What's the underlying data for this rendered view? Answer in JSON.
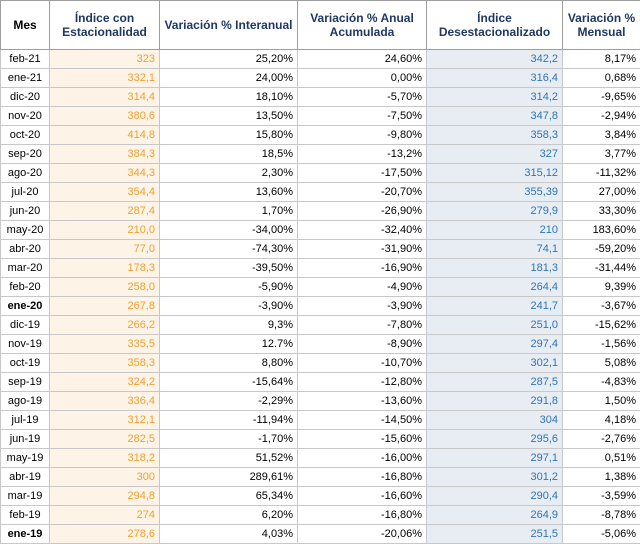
{
  "headers": [
    "Mes",
    "Índice con Estacionalidad",
    "Variación % Interanual",
    "Variación % Anual Acumulada",
    "Índice Desestacionalizado",
    "Variación % Mensual"
  ],
  "rows": [
    {
      "mes": "feb-21",
      "indice": "323",
      "interanual": "25,20%",
      "acumulada": "24,60%",
      "desest": "342,2",
      "mensual": "8,17%",
      "bold": false
    },
    {
      "mes": "ene-21",
      "indice": "332,1",
      "interanual": "24,00%",
      "acumulada": "0,00%",
      "desest": "316,4",
      "mensual": "0,68%",
      "bold": false
    },
    {
      "mes": "dic-20",
      "indice": "314,4",
      "interanual": "18,10%",
      "acumulada": "-5,70%",
      "desest": "314,2",
      "mensual": "-9,65%",
      "bold": false
    },
    {
      "mes": "nov-20",
      "indice": "380,6",
      "interanual": "13,50%",
      "acumulada": "-7,50%",
      "desest": "347,8",
      "mensual": "-2,94%",
      "bold": false
    },
    {
      "mes": "oct-20",
      "indice": "414,8",
      "interanual": "15,80%",
      "acumulada": "-9,80%",
      "desest": "358,3",
      "mensual": "3,84%",
      "bold": false
    },
    {
      "mes": "sep-20",
      "indice": "384,3",
      "interanual": "18,5%",
      "acumulada": "-13,2%",
      "desest": "327",
      "mensual": "3,77%",
      "bold": false
    },
    {
      "mes": "ago-20",
      "indice": "344,3",
      "interanual": "2,30%",
      "acumulada": "-17,50%",
      "desest": "315,12",
      "mensual": "-11,32%",
      "bold": false
    },
    {
      "mes": "jul-20",
      "indice": "354,4",
      "interanual": "13,60%",
      "acumulada": "-20,70%",
      "desest": "355,39",
      "mensual": "27,00%",
      "bold": false
    },
    {
      "mes": "jun-20",
      "indice": "287,4",
      "interanual": "1,70%",
      "acumulada": "-26,90%",
      "desest": "279,9",
      "mensual": "33,30%",
      "bold": false
    },
    {
      "mes": "may-20",
      "indice": "210,0",
      "interanual": "-34,00%",
      "acumulada": "-32,40%",
      "desest": "210",
      "mensual": "183,60%",
      "bold": false
    },
    {
      "mes": "abr-20",
      "indice": "77,0",
      "interanual": "-74,30%",
      "acumulada": "-31,90%",
      "desest": "74,1",
      "mensual": "-59,20%",
      "bold": false
    },
    {
      "mes": "mar-20",
      "indice": "178,3",
      "interanual": "-39,50%",
      "acumulada": "-16,90%",
      "desest": "181,3",
      "mensual": "-31,44%",
      "bold": false
    },
    {
      "mes": "feb-20",
      "indice": "258,0",
      "interanual": "-5,90%",
      "acumulada": "-4,90%",
      "desest": "264,4",
      "mensual": "9,39%",
      "bold": false
    },
    {
      "mes": "ene-20",
      "indice": "267,8",
      "interanual": "-3,90%",
      "acumulada": "-3,90%",
      "desest": "241,7",
      "mensual": "-3,67%",
      "bold": true
    },
    {
      "mes": "dic-19",
      "indice": "266,2",
      "interanual": "9,3%",
      "acumulada": "-7,80%",
      "desest": "251,0",
      "mensual": "-15,62%",
      "bold": false
    },
    {
      "mes": "nov-19",
      "indice": "335,5",
      "interanual": "12.7%",
      "acumulada": "-8,90%",
      "desest": "297,4",
      "mensual": "-1,56%",
      "bold": false
    },
    {
      "mes": "oct-19",
      "indice": "358,3",
      "interanual": "8,80%",
      "acumulada": "-10,70%",
      "desest": "302,1",
      "mensual": "5,08%",
      "bold": false
    },
    {
      "mes": "sep-19",
      "indice": "324,2",
      "interanual": "-15,64%",
      "acumulada": "-12,80%",
      "desest": "287,5",
      "mensual": "-4,83%",
      "bold": false
    },
    {
      "mes": "ago-19",
      "indice": "336,4",
      "interanual": "-2,29%",
      "acumulada": "-13,60%",
      "desest": "291,8",
      "mensual": "1,50%",
      "bold": false
    },
    {
      "mes": "jul-19",
      "indice": "312,1",
      "interanual": "-11,94%",
      "acumulada": "-14,50%",
      "desest": "304",
      "mensual": "4,18%",
      "bold": false
    },
    {
      "mes": "jun-19",
      "indice": "282,5",
      "interanual": "-1,70%",
      "acumulada": "-15,60%",
      "desest": "295,6",
      "mensual": "-2,76%",
      "bold": false
    },
    {
      "mes": "may-19",
      "indice": "318,2",
      "interanual": "51,52%",
      "acumulada": "-16,00%",
      "desest": "297,1",
      "mensual": "0,51%",
      "bold": false
    },
    {
      "mes": "abr-19",
      "indice": "300",
      "interanual": "289,61%",
      "acumulada": "-16,80%",
      "desest": "301,2",
      "mensual": "1,38%",
      "bold": false
    },
    {
      "mes": "mar-19",
      "indice": "294,8",
      "interanual": "65,34%",
      "acumulada": "-16,60%",
      "desest": "290,4",
      "mensual": "-3,59%",
      "bold": false
    },
    {
      "mes": "feb-19",
      "indice": "274",
      "interanual": "6,20%",
      "acumulada": "-16,80%",
      "desest": "264,9",
      "mensual": "-8,78%",
      "bold": false
    },
    {
      "mes": "ene-19",
      "indice": "278,6",
      "interanual": "4,03%",
      "acumulada": "-20,06%",
      "desest": "251,5",
      "mensual": "-5,06%",
      "bold": true
    }
  ]
}
